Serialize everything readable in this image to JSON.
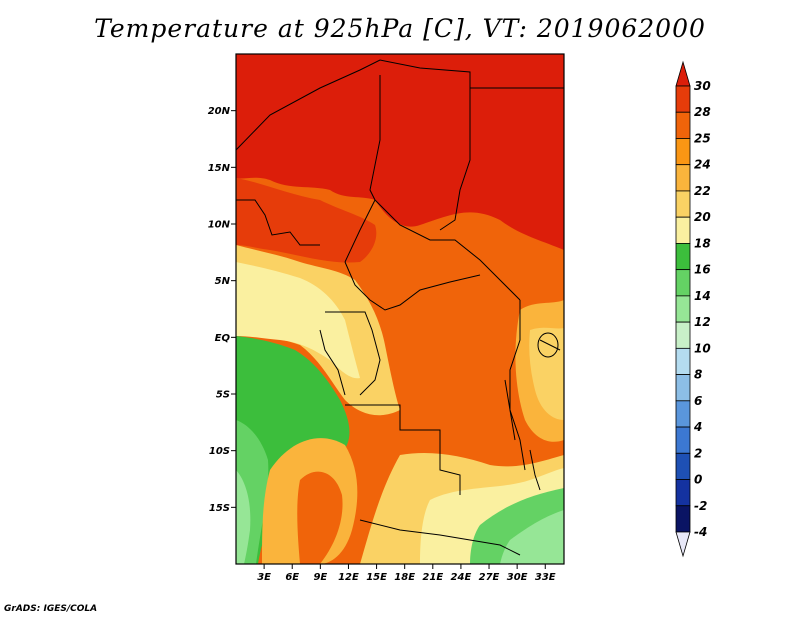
{
  "title": "Temperature at 925hPa [C], VT: 2019062000",
  "credit": "GrADS: IGES/COLA",
  "map": {
    "lon_range": [
      0,
      35
    ],
    "lat_range": [
      -20,
      25
    ],
    "lat_ticks": [
      {
        "lat": 20,
        "label": "20N"
      },
      {
        "lat": 15,
        "label": "15N"
      },
      {
        "lat": 10,
        "label": "10N"
      },
      {
        "lat": 5,
        "label": "5N"
      },
      {
        "lat": 0,
        "label": "EQ"
      },
      {
        "lat": -5,
        "label": "5S"
      },
      {
        "lat": -10,
        "label": "10S"
      },
      {
        "lat": -15,
        "label": "15S"
      }
    ],
    "lon_ticks": [
      {
        "lon": 3,
        "label": "3E"
      },
      {
        "lon": 6,
        "label": "6E"
      },
      {
        "lon": 9,
        "label": "9E"
      },
      {
        "lon": 12,
        "label": "12E"
      },
      {
        "lon": 15,
        "label": "15E"
      },
      {
        "lon": 18,
        "label": "18E"
      },
      {
        "lon": 21,
        "label": "21E"
      },
      {
        "lon": 24,
        "label": "24E"
      },
      {
        "lon": 27,
        "label": "27E"
      },
      {
        "lon": 30,
        "label": "30E"
      },
      {
        "lon": 33,
        "label": "33E"
      }
    ]
  },
  "colorbar": {
    "levels": [
      "30",
      "28",
      "25",
      "24",
      "22",
      "20",
      "18",
      "16",
      "14",
      "12",
      "10",
      "8",
      "6",
      "4",
      "2",
      "0",
      "-2",
      "-4"
    ],
    "colors": [
      "#dc1e0a",
      "#e63c0a",
      "#f0640a",
      "#fa9614",
      "#fab43c",
      "#fad264",
      "#faf0a0",
      "#3cbe3c",
      "#64d264",
      "#96e696",
      "#c8f0c8",
      "#b4dcf0",
      "#8cbee6",
      "#5a96dc",
      "#3c78d2",
      "#1e50b4",
      "#1432a0",
      "#0a1464",
      "#e8e8f8"
    ]
  }
}
